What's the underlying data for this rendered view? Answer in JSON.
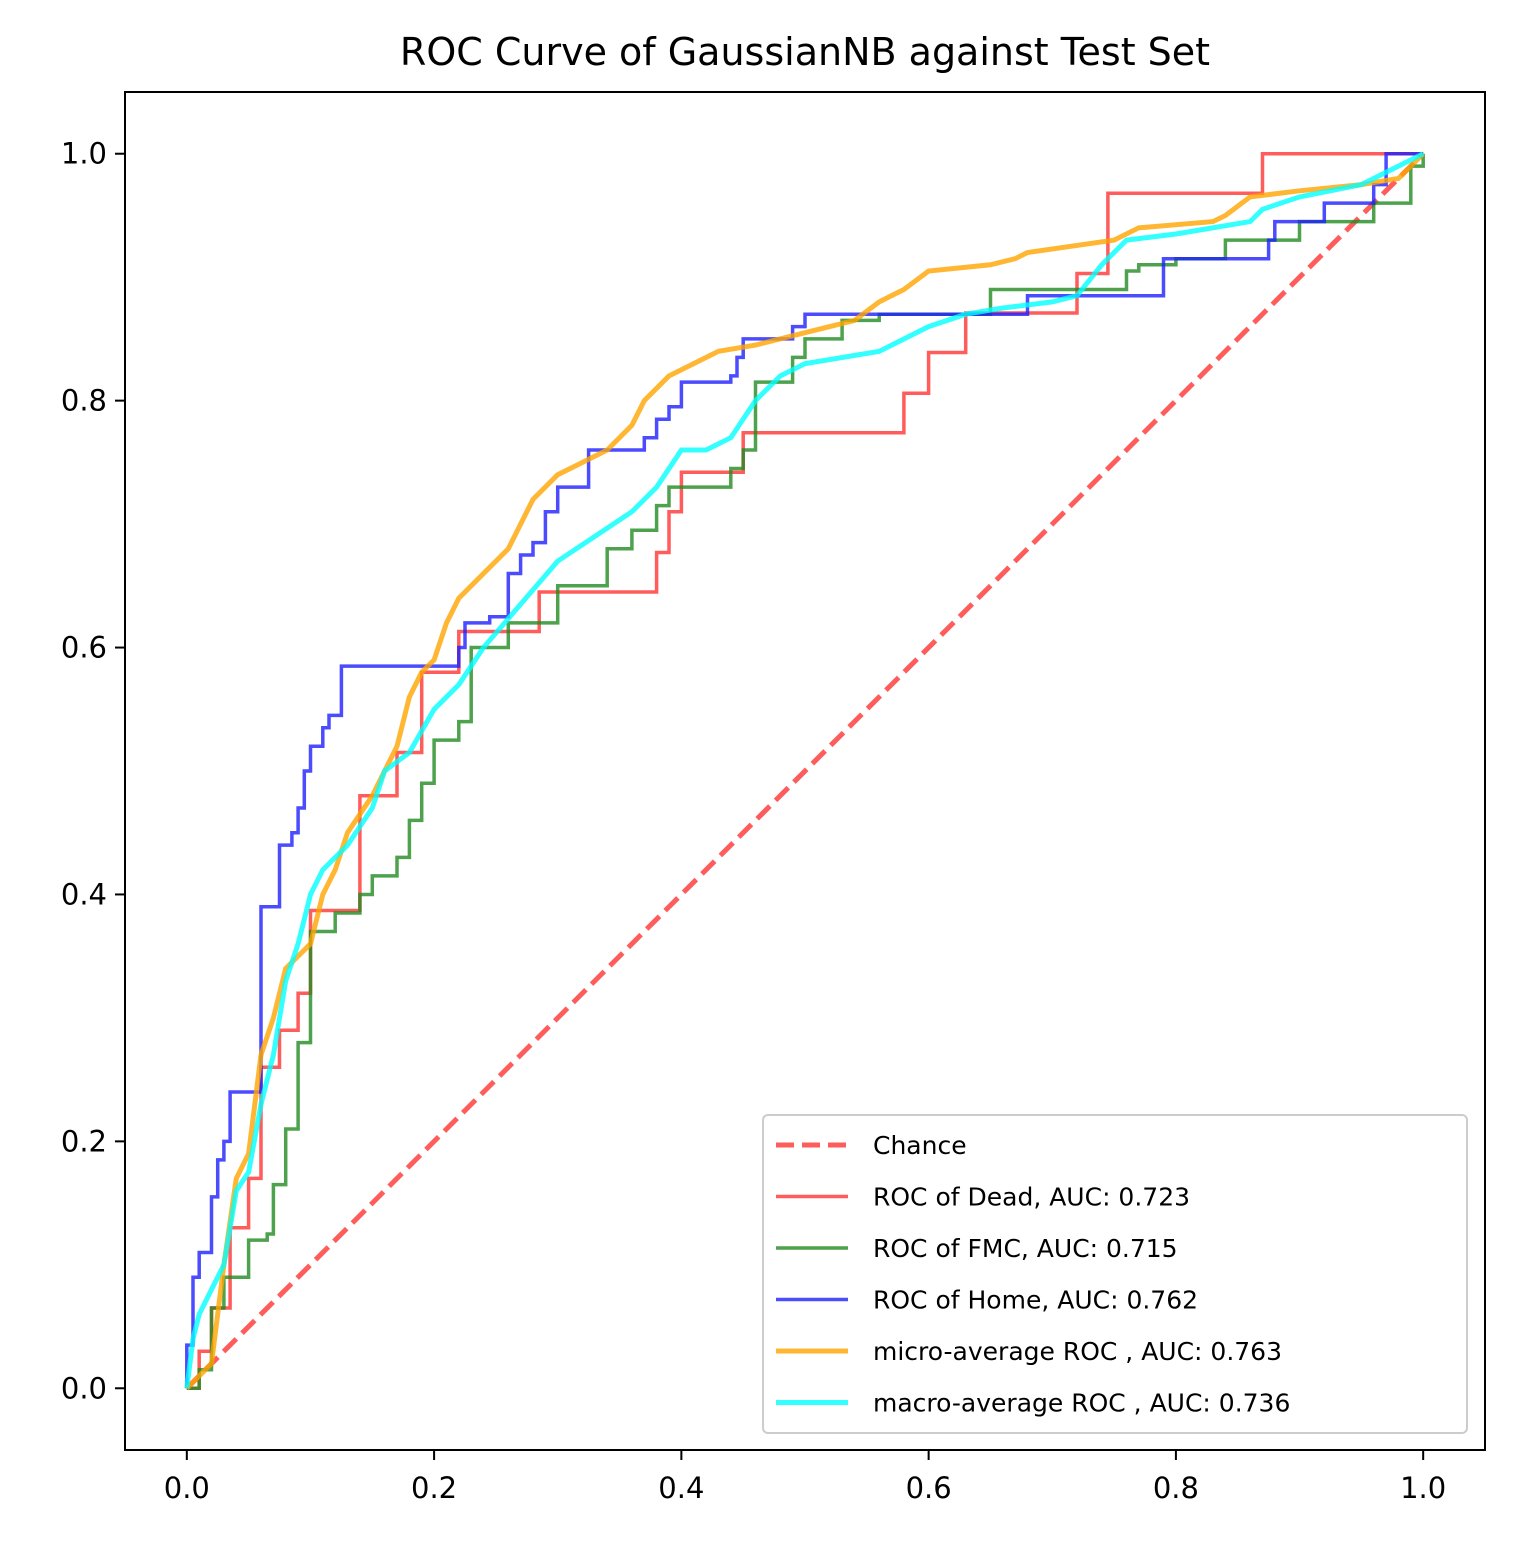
{
  "chart_data": {
    "type": "line",
    "title": "ROC Curve of GaussianNB against Test Set",
    "xlabel": "",
    "ylabel": "",
    "xlim": [
      -0.05,
      1.05
    ],
    "ylim": [
      -0.05,
      1.05
    ],
    "x_ticks": [
      0.0,
      0.2,
      0.4,
      0.6,
      0.8,
      1.0
    ],
    "x_tick_labels": [
      "0.0",
      "0.2",
      "0.4",
      "0.6",
      "0.8",
      "1.0"
    ],
    "y_ticks": [
      0.0,
      0.2,
      0.4,
      0.6,
      0.8,
      1.0
    ],
    "y_tick_labels": [
      "0.0",
      "0.2",
      "0.4",
      "0.6",
      "0.8",
      "1.0"
    ],
    "grid": false,
    "legend_position": "lower-right",
    "series": [
      {
        "name": "Chance",
        "color": "#ff3333",
        "dash": true,
        "step": false,
        "points": [
          [
            0,
            0
          ],
          [
            1,
            1
          ]
        ]
      },
      {
        "name": "ROC of Dead, AUC: 0.723",
        "color": "#ff3333",
        "dash": false,
        "step": true,
        "points": [
          [
            0,
            0
          ],
          [
            0.01,
            0.03
          ],
          [
            0.02,
            0.065
          ],
          [
            0.035,
            0.065
          ],
          [
            0.035,
            0.13
          ],
          [
            0.05,
            0.17
          ],
          [
            0.06,
            0.26
          ],
          [
            0.075,
            0.29
          ],
          [
            0.09,
            0.32
          ],
          [
            0.1,
            0.35
          ],
          [
            0.1,
            0.387
          ],
          [
            0.14,
            0.39
          ],
          [
            0.14,
            0.48
          ],
          [
            0.17,
            0.485
          ],
          [
            0.17,
            0.515
          ],
          [
            0.19,
            0.515
          ],
          [
            0.19,
            0.58
          ],
          [
            0.22,
            0.58
          ],
          [
            0.22,
            0.613
          ],
          [
            0.285,
            0.613
          ],
          [
            0.285,
            0.645
          ],
          [
            0.38,
            0.645
          ],
          [
            0.38,
            0.677
          ],
          [
            0.39,
            0.677
          ],
          [
            0.39,
            0.71
          ],
          [
            0.4,
            0.742
          ],
          [
            0.45,
            0.742
          ],
          [
            0.45,
            0.774
          ],
          [
            0.58,
            0.774
          ],
          [
            0.58,
            0.806
          ],
          [
            0.6,
            0.806
          ],
          [
            0.6,
            0.839
          ],
          [
            0.63,
            0.839
          ],
          [
            0.63,
            0.871
          ],
          [
            0.72,
            0.871
          ],
          [
            0.72,
            0.903
          ],
          [
            0.745,
            0.903
          ],
          [
            0.745,
            0.968
          ],
          [
            0.87,
            0.968
          ],
          [
            0.87,
            1.0
          ],
          [
            1.0,
            1.0
          ]
        ]
      },
      {
        "name": "ROC of FMC, AUC: 0.715",
        "color": "#228b22",
        "dash": false,
        "step": true,
        "points": [
          [
            0,
            0
          ],
          [
            0.01,
            0.015
          ],
          [
            0.02,
            0.065
          ],
          [
            0.03,
            0.09
          ],
          [
            0.05,
            0.09
          ],
          [
            0.05,
            0.12
          ],
          [
            0.065,
            0.125
          ],
          [
            0.07,
            0.165
          ],
          [
            0.08,
            0.21
          ],
          [
            0.09,
            0.28
          ],
          [
            0.1,
            0.3
          ],
          [
            0.1,
            0.37
          ],
          [
            0.12,
            0.385
          ],
          [
            0.14,
            0.4
          ],
          [
            0.15,
            0.415
          ],
          [
            0.17,
            0.43
          ],
          [
            0.18,
            0.46
          ],
          [
            0.19,
            0.49
          ],
          [
            0.2,
            0.525
          ],
          [
            0.22,
            0.54
          ],
          [
            0.23,
            0.6
          ],
          [
            0.26,
            0.62
          ],
          [
            0.3,
            0.65
          ],
          [
            0.34,
            0.68
          ],
          [
            0.36,
            0.695
          ],
          [
            0.38,
            0.715
          ],
          [
            0.39,
            0.73
          ],
          [
            0.42,
            0.73
          ],
          [
            0.44,
            0.745
          ],
          [
            0.45,
            0.76
          ],
          [
            0.46,
            0.815
          ],
          [
            0.49,
            0.835
          ],
          [
            0.5,
            0.85
          ],
          [
            0.53,
            0.865
          ],
          [
            0.56,
            0.87
          ],
          [
            0.65,
            0.87
          ],
          [
            0.65,
            0.89
          ],
          [
            0.74,
            0.89
          ],
          [
            0.76,
            0.905
          ],
          [
            0.77,
            0.91
          ],
          [
            0.8,
            0.915
          ],
          [
            0.84,
            0.93
          ],
          [
            0.9,
            0.945
          ],
          [
            0.96,
            0.96
          ],
          [
            0.99,
            0.99
          ],
          [
            1.0,
            1.0
          ]
        ]
      },
      {
        "name": "ROC of Home, AUC: 0.762",
        "color": "#1f1fff",
        "dash": false,
        "step": true,
        "points": [
          [
            0,
            0
          ],
          [
            0,
            0.035
          ],
          [
            0.005,
            0.09
          ],
          [
            0.01,
            0.11
          ],
          [
            0.02,
            0.11
          ],
          [
            0.02,
            0.155
          ],
          [
            0.025,
            0.185
          ],
          [
            0.03,
            0.2
          ],
          [
            0.035,
            0.24
          ],
          [
            0.055,
            0.24
          ],
          [
            0.06,
            0.39
          ],
          [
            0.075,
            0.39
          ],
          [
            0.075,
            0.44
          ],
          [
            0.085,
            0.45
          ],
          [
            0.09,
            0.47
          ],
          [
            0.095,
            0.5
          ],
          [
            0.1,
            0.52
          ],
          [
            0.11,
            0.535
          ],
          [
            0.115,
            0.545
          ],
          [
            0.125,
            0.585
          ],
          [
            0.22,
            0.585
          ],
          [
            0.22,
            0.6
          ],
          [
            0.225,
            0.62
          ],
          [
            0.245,
            0.625
          ],
          [
            0.26,
            0.66
          ],
          [
            0.27,
            0.675
          ],
          [
            0.28,
            0.685
          ],
          [
            0.29,
            0.71
          ],
          [
            0.3,
            0.73
          ],
          [
            0.325,
            0.76
          ],
          [
            0.37,
            0.77
          ],
          [
            0.38,
            0.785
          ],
          [
            0.39,
            0.795
          ],
          [
            0.4,
            0.815
          ],
          [
            0.44,
            0.82
          ],
          [
            0.445,
            0.835
          ],
          [
            0.45,
            0.85
          ],
          [
            0.49,
            0.86
          ],
          [
            0.5,
            0.87
          ],
          [
            0.68,
            0.87
          ],
          [
            0.68,
            0.885
          ],
          [
            0.79,
            0.885
          ],
          [
            0.79,
            0.915
          ],
          [
            0.87,
            0.915
          ],
          [
            0.875,
            0.93
          ],
          [
            0.88,
            0.945
          ],
          [
            0.92,
            0.945
          ],
          [
            0.92,
            0.96
          ],
          [
            0.96,
            0.975
          ],
          [
            0.97,
            1.0
          ],
          [
            1.0,
            1.0
          ]
        ]
      },
      {
        "name": "micro-average ROC , AUC: 0.763",
        "color": "#ffa500",
        "dash": false,
        "step": false,
        "points": [
          [
            0,
            0
          ],
          [
            0.02,
            0.02
          ],
          [
            0.03,
            0.1
          ],
          [
            0.04,
            0.17
          ],
          [
            0.05,
            0.19
          ],
          [
            0.06,
            0.27
          ],
          [
            0.07,
            0.3
          ],
          [
            0.08,
            0.34
          ],
          [
            0.1,
            0.36
          ],
          [
            0.11,
            0.4
          ],
          [
            0.12,
            0.42
          ],
          [
            0.13,
            0.45
          ],
          [
            0.15,
            0.48
          ],
          [
            0.16,
            0.5
          ],
          [
            0.17,
            0.52
          ],
          [
            0.18,
            0.56
          ],
          [
            0.19,
            0.58
          ],
          [
            0.2,
            0.59
          ],
          [
            0.21,
            0.62
          ],
          [
            0.22,
            0.64
          ],
          [
            0.24,
            0.66
          ],
          [
            0.26,
            0.68
          ],
          [
            0.27,
            0.7
          ],
          [
            0.28,
            0.72
          ],
          [
            0.3,
            0.74
          ],
          [
            0.32,
            0.75
          ],
          [
            0.34,
            0.76
          ],
          [
            0.36,
            0.78
          ],
          [
            0.37,
            0.8
          ],
          [
            0.39,
            0.82
          ],
          [
            0.41,
            0.83
          ],
          [
            0.43,
            0.84
          ],
          [
            0.46,
            0.845
          ],
          [
            0.5,
            0.855
          ],
          [
            0.54,
            0.865
          ],
          [
            0.56,
            0.88
          ],
          [
            0.58,
            0.89
          ],
          [
            0.6,
            0.905
          ],
          [
            0.65,
            0.91
          ],
          [
            0.67,
            0.915
          ],
          [
            0.68,
            0.92
          ],
          [
            0.75,
            0.93
          ],
          [
            0.77,
            0.94
          ],
          [
            0.83,
            0.945
          ],
          [
            0.84,
            0.95
          ],
          [
            0.86,
            0.965
          ],
          [
            0.9,
            0.97
          ],
          [
            0.95,
            0.975
          ],
          [
            0.98,
            0.98
          ],
          [
            1.0,
            1.0
          ]
        ]
      },
      {
        "name": "macro-average ROC , AUC: 0.736",
        "color": "#00ffff",
        "dash": false,
        "step": false,
        "points": [
          [
            0,
            0
          ],
          [
            0.005,
            0.04
          ],
          [
            0.01,
            0.06
          ],
          [
            0.02,
            0.08
          ],
          [
            0.03,
            0.1
          ],
          [
            0.04,
            0.16
          ],
          [
            0.05,
            0.175
          ],
          [
            0.06,
            0.23
          ],
          [
            0.07,
            0.27
          ],
          [
            0.08,
            0.33
          ],
          [
            0.09,
            0.36
          ],
          [
            0.1,
            0.4
          ],
          [
            0.11,
            0.42
          ],
          [
            0.13,
            0.44
          ],
          [
            0.15,
            0.47
          ],
          [
            0.16,
            0.5
          ],
          [
            0.18,
            0.515
          ],
          [
            0.2,
            0.55
          ],
          [
            0.22,
            0.57
          ],
          [
            0.24,
            0.6
          ],
          [
            0.27,
            0.635
          ],
          [
            0.3,
            0.67
          ],
          [
            0.33,
            0.69
          ],
          [
            0.36,
            0.71
          ],
          [
            0.38,
            0.73
          ],
          [
            0.4,
            0.76
          ],
          [
            0.42,
            0.76
          ],
          [
            0.44,
            0.77
          ],
          [
            0.46,
            0.8
          ],
          [
            0.48,
            0.82
          ],
          [
            0.5,
            0.83
          ],
          [
            0.56,
            0.84
          ],
          [
            0.6,
            0.86
          ],
          [
            0.63,
            0.87
          ],
          [
            0.66,
            0.875
          ],
          [
            0.7,
            0.88
          ],
          [
            0.72,
            0.885
          ],
          [
            0.74,
            0.91
          ],
          [
            0.76,
            0.93
          ],
          [
            0.8,
            0.935
          ],
          [
            0.86,
            0.945
          ],
          [
            0.87,
            0.955
          ],
          [
            0.9,
            0.965
          ],
          [
            0.95,
            0.975
          ],
          [
            1.0,
            1.0
          ]
        ]
      }
    ]
  }
}
